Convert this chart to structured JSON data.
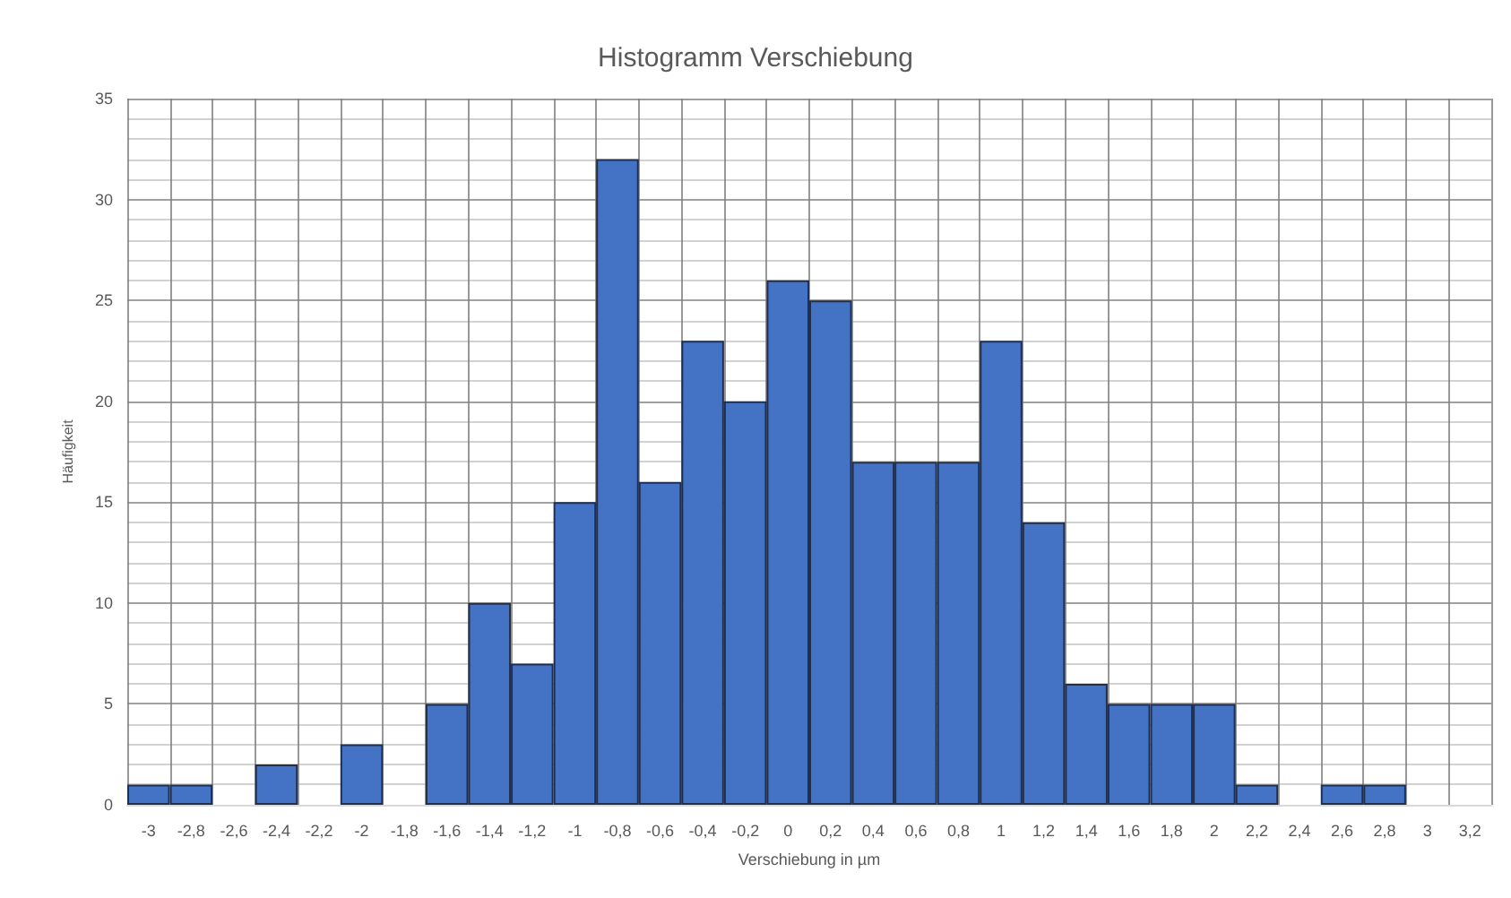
{
  "chart_data": {
    "type": "bar",
    "title": "Histogramm Verschiebung",
    "xlabel": "Verschiebung in µm",
    "ylabel": "Häufigkeit",
    "categories": [
      "-3",
      "-2,8",
      "-2,6",
      "-2,4",
      "-2,2",
      "-2",
      "-1,8",
      "-1,6",
      "-1,4",
      "-1,2",
      "-1",
      "-0,8",
      "-0,6",
      "-0,4",
      "-0,2",
      "0",
      "0,2",
      "0,4",
      "0,6",
      "0,8",
      "1",
      "1,2",
      "1,4",
      "1,6",
      "1,8",
      "2",
      "2,2",
      "2,4",
      "2,6",
      "2,8",
      "3",
      "3,2"
    ],
    "values": [
      1,
      1,
      0,
      2,
      0,
      3,
      0,
      5,
      10,
      7,
      15,
      32,
      16,
      23,
      20,
      26,
      25,
      17,
      17,
      17,
      23,
      14,
      6,
      5,
      5,
      5,
      1,
      0,
      1,
      1,
      0,
      0
    ],
    "color": "#4472c4",
    "ylim": [
      0,
      35
    ],
    "yticks": [
      0,
      5,
      10,
      15,
      20,
      25,
      30,
      35
    ],
    "grid": true
  }
}
